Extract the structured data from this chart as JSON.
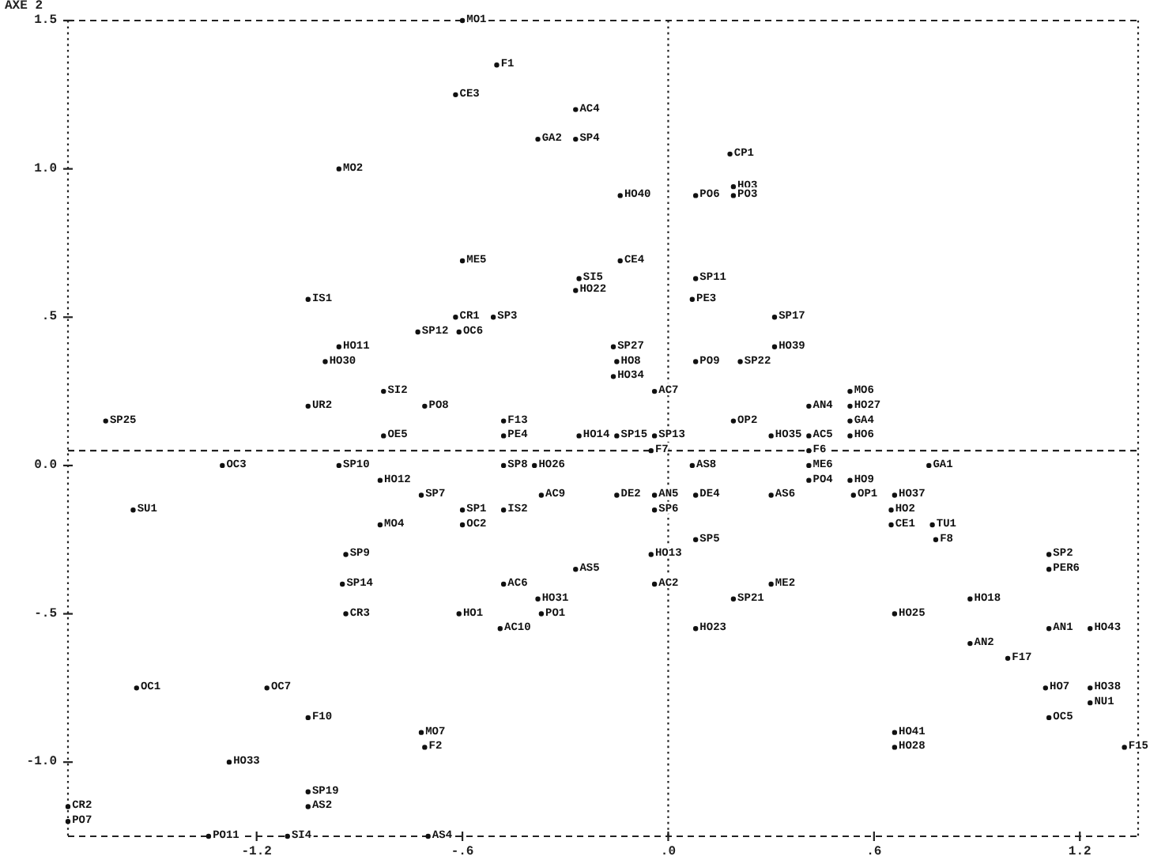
{
  "chart_data": {
    "type": "scatter",
    "ylabel": "AXE 2",
    "x": [
      -0.6,
      -0.5,
      -0.62,
      -0.27,
      -0.38,
      -0.27,
      0.18,
      -0.96,
      0.19,
      -0.14,
      0.08,
      0.19,
      -0.6,
      -0.14,
      -0.26,
      0.08,
      -0.27,
      -1.05,
      0.07,
      -0.62,
      -0.51,
      0.31,
      -0.73,
      -0.61,
      -0.96,
      -0.16,
      0.31,
      -1.0,
      -0.15,
      0.08,
      0.21,
      -0.16,
      -0.83,
      -0.04,
      0.53,
      -1.05,
      -0.71,
      0.41,
      0.53,
      -1.64,
      -0.48,
      0.19,
      0.53,
      -0.83,
      -0.48,
      -0.26,
      -0.15,
      -0.04,
      0.3,
      0.41,
      0.53,
      -0.05,
      0.41,
      -1.3,
      -0.96,
      -0.48,
      -0.39,
      0.07,
      0.41,
      0.76,
      -0.84,
      0.41,
      0.53,
      -0.72,
      -0.37,
      -0.15,
      -0.04,
      0.08,
      0.3,
      0.54,
      0.66,
      -1.56,
      -0.6,
      -0.48,
      -0.04,
      0.65,
      -0.84,
      -0.6,
      0.65,
      0.77,
      0.08,
      0.78,
      -0.94,
      -0.05,
      1.11,
      -0.27,
      1.11,
      -0.95,
      -0.48,
      -0.04,
      0.3,
      -0.38,
      0.19,
      0.88,
      -0.94,
      -0.61,
      -0.37,
      0.66,
      -0.49,
      0.08,
      1.11,
      1.23,
      0.88,
      0.99,
      -1.55,
      -1.17,
      1.1,
      1.23,
      1.23,
      -1.05,
      1.11,
      -0.72,
      0.66,
      -0.71,
      0.66,
      1.33,
      -1.28,
      -1.05,
      -1.75,
      -1.05,
      -1.75,
      -1.34,
      -1.11,
      -0.7
    ],
    "values": [
      1.5,
      1.35,
      1.25,
      1.2,
      1.1,
      1.1,
      1.05,
      1.0,
      0.94,
      0.91,
      0.91,
      0.91,
      0.69,
      0.69,
      0.63,
      0.63,
      0.59,
      0.56,
      0.56,
      0.5,
      0.5,
      0.5,
      0.45,
      0.45,
      0.4,
      0.4,
      0.4,
      0.35,
      0.35,
      0.35,
      0.35,
      0.3,
      0.25,
      0.25,
      0.25,
      0.2,
      0.2,
      0.2,
      0.2,
      0.15,
      0.15,
      0.15,
      0.15,
      0.1,
      0.1,
      0.1,
      0.1,
      0.1,
      0.1,
      0.1,
      0.1,
      0.05,
      0.05,
      0,
      0,
      0,
      0,
      0,
      0,
      0,
      -0.05,
      -0.05,
      -0.05,
      -0.1,
      -0.1,
      -0.1,
      -0.1,
      -0.1,
      -0.1,
      -0.1,
      -0.1,
      -0.15,
      -0.15,
      -0.15,
      -0.15,
      -0.15,
      -0.2,
      -0.2,
      -0.2,
      -0.2,
      -0.25,
      -0.25,
      -0.3,
      -0.3,
      -0.3,
      -0.35,
      -0.35,
      -0.4,
      -0.4,
      -0.4,
      -0.4,
      -0.45,
      -0.45,
      -0.45,
      -0.5,
      -0.5,
      -0.5,
      -0.5,
      -0.55,
      -0.55,
      -0.55,
      -0.55,
      -0.6,
      -0.65,
      -0.75,
      -0.75,
      -0.75,
      -0.75,
      -0.8,
      -0.85,
      -0.85,
      -0.9,
      -0.9,
      -0.95,
      -0.95,
      -0.95,
      -1.0,
      -1.1,
      -1.15,
      -1.15,
      -1.2,
      -1.25,
      -1.25,
      -1.25
    ],
    "value_labels": [
      "MO1",
      "F1",
      "CE3",
      "AC4",
      "GA2",
      "SP4",
      "CP1",
      "MO2",
      "HO3",
      "HO40",
      "PO6",
      "PO3",
      "ME5",
      "CE4",
      "SI5",
      "SP11",
      "HO22",
      "IS1",
      "PE3",
      "CR1",
      "SP3",
      "SP17",
      "SP12",
      "OC6",
      "HO11",
      "SP27",
      "HO39",
      "HO30",
      "HO8",
      "PO9",
      "SP22",
      "HO34",
      "SI2",
      "AC7",
      "MO6",
      "UR2",
      "PO8",
      "AN4",
      "HO27",
      "SP25",
      "F13",
      "OP2",
      "GA4",
      "OE5",
      "PE4",
      "HO14",
      "SP15",
      "SP13",
      "HO35",
      "AC5",
      "HO6",
      "F7",
      "F6",
      "OC3",
      "SP10",
      "SP8",
      "HO26",
      "AS8",
      "ME6",
      "GA1",
      "HO12",
      "PO4",
      "HO9",
      "SP7",
      "AC9",
      "DE2",
      "AN5",
      "DE4",
      "AS6",
      "OP1",
      "HO37",
      "SU1",
      "SP1",
      "IS2",
      "SP6",
      "HO2",
      "MO4",
      "OC2",
      "CE1",
      "TU1",
      "SP5",
      "F8",
      "SP9",
      "HO13",
      "SP2",
      "AS5",
      "PER6",
      "SP14",
      "AC6",
      "AC2",
      "ME2",
      "HO31",
      "SP21",
      "HO18",
      "CR3",
      "HO1",
      "PO1",
      "HO25",
      "AC10",
      "HO23",
      "AN1",
      "HO43",
      "AN2",
      "F17",
      "OC1",
      "OC7",
      "HO7",
      "HO38",
      "NU1",
      "F10",
      "OC5",
      "MO7",
      "HO41",
      "F2",
      "HO28",
      "F15",
      "HO33",
      "SP19",
      "CR2",
      "AS2",
      "PO7",
      "PO11",
      "SI4",
      "AS4"
    ],
    "color": "#111111",
    "marker": "circle",
    "xlim": [
      -1.75,
      1.37
    ],
    "ylim": [
      -1.25,
      1.5
    ],
    "xticks": [
      -1.2,
      {
        "value": -0.6,
        "label": "-.6"
      },
      {
        "value": 0,
        "label": ".0"
      },
      {
        "value": 0.6,
        "label": ".6"
      },
      1.2
    ],
    "yticks": [
      1.5,
      {
        "value": 1,
        "label": "1.0"
      },
      {
        "value": 0.5,
        "label": ".5"
      },
      {
        "value": 0,
        "label": "0.0"
      },
      {
        "value": -0.5,
        "label": "-.5"
      },
      {
        "value": -1,
        "label": "-1.0"
      }
    ],
    "ref_lines": [
      {
        "axis": "x",
        "value": 0,
        "line_style": "dotted"
      },
      {
        "axis": "y",
        "value": 0.05,
        "line_style": "dashed"
      }
    ]
  }
}
